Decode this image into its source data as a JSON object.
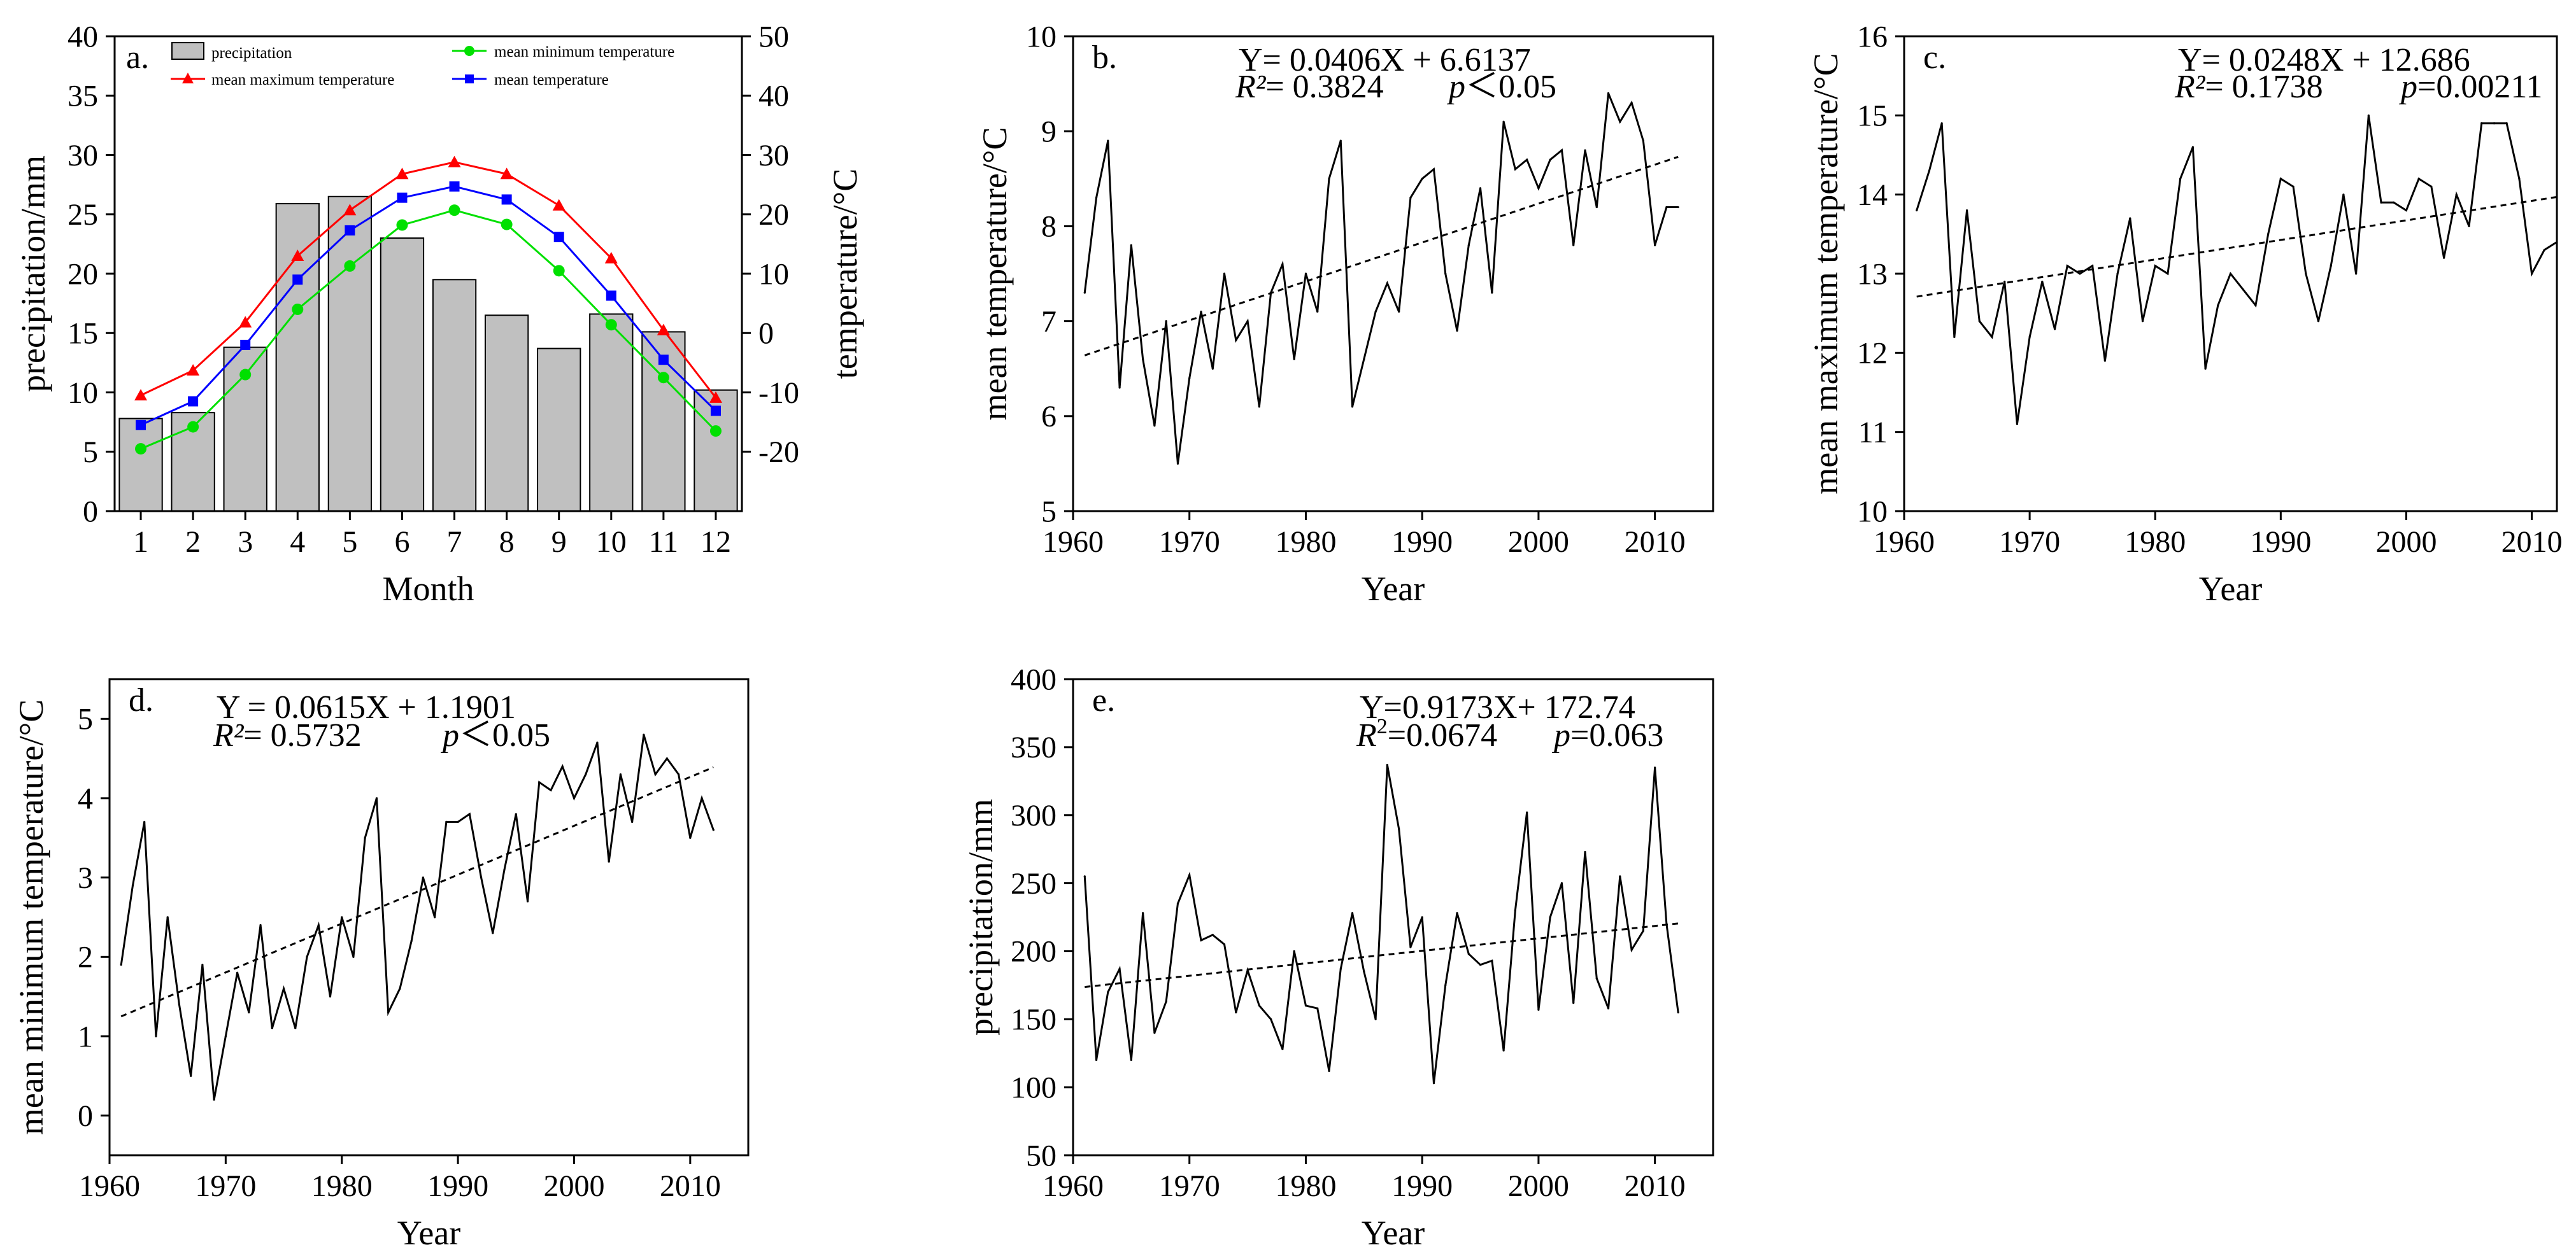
{
  "chart_data": [
    {
      "id": "a",
      "panel_label": "a.",
      "type": "bar+line",
      "xlabel": "Month",
      "ylabel": "precipitation/mm",
      "y2label": "temperature/°C",
      "categories": [
        1,
        2,
        3,
        4,
        5,
        6,
        7,
        8,
        9,
        10,
        11,
        12
      ],
      "ylim": [
        0,
        40
      ],
      "yticks": [
        0,
        5,
        10,
        15,
        20,
        25,
        30,
        35,
        40
      ],
      "y2lim": [
        -30,
        50
      ],
      "y2ticks": [
        -20,
        -10,
        0,
        10,
        20,
        30,
        40,
        50
      ],
      "legend": {
        "precipitation": "precipitation",
        "tmax": "mean maximum temperature",
        "tmin": "mean minimum temperature",
        "tmean": "mean temperature"
      },
      "series": [
        {
          "key": "precipitation",
          "name": "precipitation",
          "kind": "bar",
          "axis": "left",
          "color": "#c0c0c0",
          "values": [
            7.8,
            8.3,
            13.8,
            25.9,
            26.5,
            23.0,
            19.5,
            16.5,
            13.7,
            16.6,
            15.1,
            10.2
          ]
        },
        {
          "key": "tmax",
          "name": "mean maximum temperature",
          "kind": "line",
          "axis": "right",
          "color": "#ff0000",
          "marker": "triangle",
          "values": [
            -10.5,
            -6.3,
            1.8,
            13.0,
            20.7,
            26.8,
            28.8,
            26.8,
            21.5,
            12.6,
            0.5,
            -10.9
          ]
        },
        {
          "key": "tmin",
          "name": "mean minimum temperature",
          "kind": "line",
          "axis": "right",
          "color": "#00e000",
          "marker": "circle",
          "values": [
            -19.5,
            -15.8,
            -7.0,
            4.0,
            11.3,
            18.2,
            20.7,
            18.3,
            10.5,
            1.4,
            -7.5,
            -16.5
          ]
        },
        {
          "key": "tmean",
          "name": "mean temperature",
          "kind": "line",
          "axis": "right",
          "color": "#0000ff",
          "marker": "square",
          "values": [
            -15.5,
            -11.5,
            -2.0,
            9.0,
            17.3,
            22.8,
            24.7,
            22.5,
            16.2,
            6.3,
            -4.5,
            -13.1
          ]
        }
      ]
    },
    {
      "id": "b",
      "panel_label": "b.",
      "type": "line",
      "xlabel": "Year",
      "ylabel": "mean temperature/°C",
      "xlim": [
        1960,
        2015
      ],
      "xticks": [
        1960,
        1970,
        1980,
        1990,
        2000,
        2010
      ],
      "ylim": [
        5,
        10
      ],
      "yticks": [
        5,
        6,
        7,
        8,
        9,
        10
      ],
      "equation": "Y= 0.0406X + 6.6137",
      "r2_label": "R²",
      "r2_value": "= 0.3824",
      "p_label": "p",
      "p_value": "＜0.05",
      "trend": {
        "x": [
          1961,
          2012
        ],
        "y": [
          6.64,
          8.73
        ]
      },
      "x": [
        1961,
        1962,
        1963,
        1964,
        1965,
        1966,
        1967,
        1968,
        1969,
        1970,
        1971,
        1972,
        1973,
        1974,
        1975,
        1976,
        1977,
        1978,
        1979,
        1980,
        1981,
        1982,
        1983,
        1984,
        1985,
        1986,
        1987,
        1988,
        1989,
        1990,
        1991,
        1992,
        1993,
        1994,
        1995,
        1996,
        1997,
        1998,
        1999,
        2000,
        2001,
        2002,
        2003,
        2004,
        2005,
        2006,
        2007,
        2008,
        2009,
        2010,
        2011,
        2012
      ],
      "values": [
        7.3,
        8.3,
        8.9,
        6.3,
        7.8,
        6.6,
        5.9,
        7.0,
        5.5,
        6.4,
        7.1,
        6.5,
        7.5,
        6.8,
        7.0,
        6.1,
        7.3,
        7.6,
        6.6,
        7.5,
        7.1,
        8.5,
        8.9,
        6.1,
        6.6,
        7.1,
        7.4,
        7.1,
        8.3,
        8.5,
        8.6,
        7.5,
        6.9,
        7.8,
        8.4,
        7.3,
        9.1,
        8.6,
        8.7,
        8.4,
        8.7,
        8.8,
        7.8,
        8.8,
        8.2,
        9.4,
        9.1,
        9.3,
        8.9,
        7.8,
        8.2,
        8.2
      ]
    },
    {
      "id": "c",
      "panel_label": "c.",
      "type": "line",
      "xlabel": "Year",
      "ylabel": "mean maximum temperature/°C",
      "xlim": [
        1960,
        2012
      ],
      "xticks": [
        1960,
        1970,
        1980,
        1990,
        2000,
        2010
      ],
      "ylim": [
        10,
        16
      ],
      "yticks": [
        10,
        11,
        12,
        13,
        14,
        15,
        16
      ],
      "equation": "Y= 0.0248X + 12.686",
      "r2_label": "R²",
      "r2_value": "= 0.1738",
      "p_label": "p",
      "p_value": "=0.00211",
      "trend": {
        "x": [
          1961,
          2012
        ],
        "y": [
          12.71,
          13.97
        ]
      },
      "x": [
        1961,
        1962,
        1963,
        1964,
        1965,
        1966,
        1967,
        1968,
        1969,
        1970,
        1971,
        1972,
        1973,
        1974,
        1975,
        1976,
        1977,
        1978,
        1979,
        1980,
        1981,
        1982,
        1983,
        1984,
        1985,
        1986,
        1987,
        1988,
        1989,
        1990,
        1991,
        1992,
        1993,
        1994,
        1995,
        1996,
        1997,
        1998,
        1999,
        2000,
        2001,
        2002,
        2003,
        2004,
        2005,
        2006,
        2007,
        2008,
        2009,
        2010,
        2011,
        2012
      ],
      "values": [
        13.8,
        14.3,
        14.9,
        12.2,
        13.8,
        12.4,
        12.2,
        12.9,
        11.1,
        12.2,
        12.9,
        12.3,
        13.1,
        13.0,
        13.1,
        11.9,
        13.0,
        13.7,
        12.4,
        13.1,
        13.0,
        14.2,
        14.6,
        11.8,
        12.6,
        13.0,
        12.8,
        12.6,
        13.5,
        14.2,
        14.1,
        13.0,
        12.4,
        13.1,
        14.0,
        13.0,
        15.0,
        13.9,
        13.9,
        13.8,
        14.2,
        14.1,
        13.2,
        14.0,
        13.6,
        14.9,
        14.9,
        14.9,
        14.2,
        13.0,
        13.3,
        13.4
      ]
    },
    {
      "id": "d",
      "panel_label": "d.",
      "type": "line",
      "xlabel": "Year",
      "ylabel": "mean minimum temperature/°C",
      "xlim": [
        1960,
        2015
      ],
      "xticks": [
        1960,
        1970,
        1980,
        1990,
        2000,
        2010
      ],
      "ylim": [
        -0.5,
        5.5
      ],
      "yticks": [
        0,
        1,
        2,
        3,
        4,
        5
      ],
      "equation": "Y = 0.0615X + 1.1901",
      "r2_label": "R²",
      "r2_value": "= 0.5732",
      "p_label": "p",
      "p_value": "＜0.05",
      "trend": {
        "x": [
          1961,
          2012
        ],
        "y": [
          1.25,
          4.39
        ]
      },
      "x": [
        1961,
        1962,
        1963,
        1964,
        1965,
        1966,
        1967,
        1968,
        1969,
        1970,
        1971,
        1972,
        1973,
        1974,
        1975,
        1976,
        1977,
        1978,
        1979,
        1980,
        1981,
        1982,
        1983,
        1984,
        1985,
        1986,
        1987,
        1988,
        1989,
        1990,
        1991,
        1992,
        1993,
        1994,
        1995,
        1996,
        1997,
        1998,
        1999,
        2000,
        2001,
        2002,
        2003,
        2004,
        2005,
        2006,
        2007,
        2008,
        2009,
        2010,
        2011,
        2012
      ],
      "values": [
        1.9,
        2.9,
        3.7,
        1.0,
        2.5,
        1.4,
        0.5,
        1.9,
        0.2,
        1.0,
        1.8,
        1.3,
        2.4,
        1.1,
        1.6,
        1.1,
        2.0,
        2.4,
        1.5,
        2.5,
        2.0,
        3.5,
        4.0,
        1.3,
        1.6,
        2.2,
        3.0,
        2.5,
        3.7,
        3.7,
        3.8,
        3.0,
        2.3,
        3.1,
        3.8,
        2.7,
        4.2,
        4.1,
        4.4,
        4.0,
        4.3,
        4.7,
        3.2,
        4.3,
        3.7,
        4.8,
        4.3,
        4.5,
        4.3,
        3.5,
        4.0,
        3.6
      ]
    },
    {
      "id": "e",
      "panel_label": "e.",
      "type": "line",
      "xlabel": "Year",
      "ylabel": "precipitation/mm",
      "xlim": [
        1960,
        2015
      ],
      "xticks": [
        1960,
        1970,
        1980,
        1990,
        2000,
        2010
      ],
      "ylim": [
        50,
        400
      ],
      "yticks": [
        50,
        100,
        150,
        200,
        250,
        300,
        350,
        400
      ],
      "equation": "Y=0.9173X+ 172.74",
      "r2_label": "R",
      "r2_sup": "2",
      "r2_value": "=0.0674",
      "p_label": "p",
      "p_value": "=0.063",
      "trend": {
        "x": [
          1961,
          2012
        ],
        "y": [
          173.7,
          220.4
        ]
      },
      "x": [
        1961,
        1962,
        1963,
        1964,
        1965,
        1966,
        1967,
        1968,
        1969,
        1970,
        1971,
        1972,
        1973,
        1974,
        1975,
        1976,
        1977,
        1978,
        1979,
        1980,
        1981,
        1982,
        1983,
        1984,
        1985,
        1986,
        1987,
        1988,
        1989,
        1990,
        1991,
        1992,
        1993,
        1994,
        1995,
        1996,
        1997,
        1998,
        1999,
        2000,
        2001,
        2002,
        2003,
        2004,
        2005,
        2006,
        2007,
        2008,
        2009,
        2010,
        2011,
        2012
      ],
      "values": [
        255,
        120,
        170,
        187,
        120,
        228,
        140,
        163,
        235,
        256,
        208,
        212,
        205,
        155,
        186,
        160,
        150,
        128,
        200,
        160,
        158,
        112,
        187,
        228,
        185,
        150,
        337,
        290,
        203,
        225,
        103,
        175,
        228,
        198,
        190,
        193,
        127,
        230,
        302,
        157,
        225,
        250,
        162,
        273,
        180,
        158,
        255,
        201,
        215,
        335,
        220,
        155
      ]
    }
  ]
}
